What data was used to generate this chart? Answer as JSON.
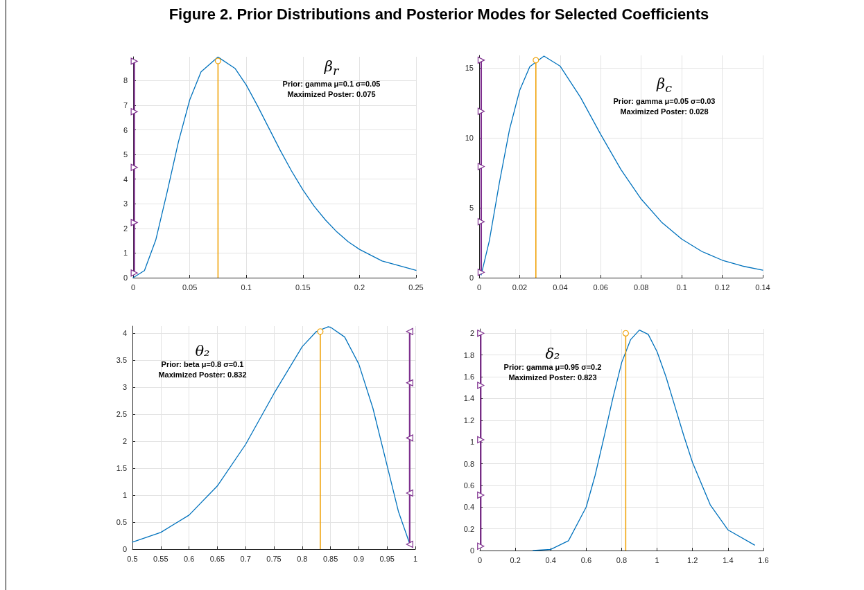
{
  "chart_data": [
    {
      "type": "line",
      "title": "Figure 2. Prior Distributions and Posterior Modes for Selected Coefficients",
      "annotations": [
        "β$_{r}$",
        "Prior: gamma μ=0.1 σ=0.05",
        "Maximized Poster: 0.075"
      ],
      "xlim": [
        0,
        0.25
      ],
      "xticks": [
        0,
        0.05,
        0.1,
        0.15,
        0.2,
        0.25
      ],
      "ylim": [
        0,
        8.97
      ],
      "yticks": [
        0,
        1,
        2,
        3,
        4,
        5,
        6,
        7,
        8
      ],
      "grid": true,
      "series": [
        {
          "color": "#0072bd",
          "marker": "none",
          "x": [
            0,
            0.01,
            0.02,
            0.03,
            0.04,
            0.05,
            0.06,
            0.075,
            0.09,
            0.1,
            0.11,
            0.12,
            0.13,
            0.14,
            0.15,
            0.16,
            0.17,
            0.18,
            0.19,
            0.2,
            0.22,
            0.25
          ],
          "values": [
            0,
            0.29,
            1.53,
            3.47,
            5.51,
            7.22,
            8.36,
            8.96,
            8.5,
            7.82,
            6.97,
            6.07,
            5.17,
            4.33,
            3.57,
            2.9,
            2.34,
            1.86,
            1.46,
            1.15,
            0.68,
            0.3
          ]
        },
        {
          "type": "lollipop",
          "color": "#f0a30a",
          "marker": "circle",
          "x": [
            0.075
          ],
          "values": [
            8.8
          ]
        },
        {
          "type": "line",
          "color": "#7e2f8e",
          "marker": "triangle",
          "x": [
            0.001,
            0.001,
            0.001,
            0.001,
            0.001
          ],
          "values": [
            0.19,
            2.24,
            4.48,
            6.74,
            8.79
          ]
        }
      ]
    },
    {
      "type": "line",
      "annotations": [
        "β$_{c}$",
        "Prior: gamma μ=0.05 σ=0.03",
        "Maximized Poster: 0.028"
      ],
      "xlim": [
        0,
        0.14
      ],
      "xticks": [
        0,
        0.02,
        0.04,
        0.06,
        0.08,
        0.1,
        0.12,
        0.14
      ],
      "ylim": [
        0,
        15.9
      ],
      "yticks": [
        0,
        5,
        10,
        15
      ],
      "grid": true,
      "series": [
        {
          "color": "#0072bd",
          "marker": "none",
          "x": [
            0.001,
            0.005,
            0.01,
            0.015,
            0.02,
            0.025,
            0.032,
            0.04,
            0.05,
            0.06,
            0.07,
            0.08,
            0.09,
            0.1,
            0.11,
            0.12,
            0.13,
            0.14
          ],
          "values": [
            0.19,
            2.62,
            6.81,
            10.61,
            13.4,
            15.09,
            15.85,
            15.13,
            12.91,
            10.25,
            7.73,
            5.62,
            3.98,
            2.76,
            1.87,
            1.25,
            0.83,
            0.54
          ]
        },
        {
          "type": "lollipop",
          "color": "#f0a30a",
          "marker": "circle",
          "x": [
            0.028
          ],
          "values": [
            15.56
          ]
        },
        {
          "type": "line",
          "color": "#7e2f8e",
          "marker": "triangle",
          "x": [
            0.001,
            0.001,
            0.001,
            0.001,
            0.001
          ],
          "values": [
            0.38,
            4.0,
            7.95,
            11.9,
            15.56
          ]
        }
      ]
    },
    {
      "type": "line",
      "annotations": [
        "θ₂",
        "Prior: beta μ=0.8 σ=0.1",
        "Maximized Poster: 0.832"
      ],
      "xlim": [
        0.5,
        1
      ],
      "xticks": [
        0.5,
        0.55,
        0.6,
        0.65,
        0.7,
        0.75,
        0.8,
        0.85,
        0.9,
        0.95,
        1
      ],
      "ylim": [
        0,
        4.13
      ],
      "yticks": [
        0,
        0.5,
        1,
        1.5,
        2,
        2.5,
        3,
        3.5,
        4
      ],
      "grid": true,
      "series": [
        {
          "color": "#0072bd",
          "marker": "none",
          "x": [
            0.5,
            0.55,
            0.6,
            0.65,
            0.7,
            0.75,
            0.8,
            0.825,
            0.846,
            0.85,
            0.875,
            0.9,
            0.925,
            0.95,
            0.97,
            0.99
          ],
          "values": [
            0.13,
            0.31,
            0.63,
            1.17,
            1.94,
            2.88,
            3.75,
            4.03,
            4.12,
            4.11,
            3.93,
            3.43,
            2.61,
            1.55,
            0.7,
            0.1
          ]
        },
        {
          "type": "lollipop",
          "color": "#f0a30a",
          "marker": "circle",
          "x": [
            0.832
          ],
          "values": [
            4.03
          ]
        },
        {
          "type": "line",
          "color": "#7e2f8e",
          "marker": "triangle",
          "x": [
            0.99,
            0.99,
            0.99,
            0.99,
            0.99
          ],
          "values": [
            0.09,
            1.04,
            2.06,
            3.08,
            4.03
          ]
        }
      ]
    },
    {
      "type": "line",
      "annotations": [
        "δ₂",
        "Prior: gamma μ=0.95 σ=0.2",
        "Maximized Poster: 0.823"
      ],
      "xlim": [
        0,
        1.6
      ],
      "xticks": [
        0,
        0.2,
        0.4,
        0.6,
        0.8,
        1,
        1.2,
        1.4,
        1.6
      ],
      "ylim": [
        0,
        2.04
      ],
      "yticks": [
        0,
        0.2,
        0.4,
        0.6,
        0.8,
        1,
        1.2,
        1.4,
        1.6,
        1.8,
        2
      ],
      "grid": true,
      "series": [
        {
          "color": "#0072bd",
          "marker": "none",
          "x": [
            0.3,
            0.4,
            0.5,
            0.6,
            0.65,
            0.7,
            0.75,
            0.8,
            0.85,
            0.9,
            0.95,
            1,
            1.05,
            1.1,
            1.15,
            1.2,
            1.3,
            1.4,
            1.55
          ],
          "values": [
            0,
            0.01,
            0.09,
            0.4,
            0.69,
            1.04,
            1.4,
            1.73,
            1.94,
            2.03,
            1.99,
            1.83,
            1.6,
            1.33,
            1.06,
            0.81,
            0.42,
            0.19,
            0.05
          ]
        },
        {
          "type": "lollipop",
          "color": "#f0a30a",
          "marker": "circle",
          "x": [
            0.823
          ],
          "values": [
            2.0
          ]
        },
        {
          "type": "line",
          "color": "#7e2f8e",
          "marker": "triangle",
          "x": [
            0.005,
            0.005,
            0.005,
            0.005,
            0.005
          ],
          "values": [
            0.04,
            0.51,
            1.02,
            1.52,
            2.0
          ]
        }
      ]
    }
  ]
}
